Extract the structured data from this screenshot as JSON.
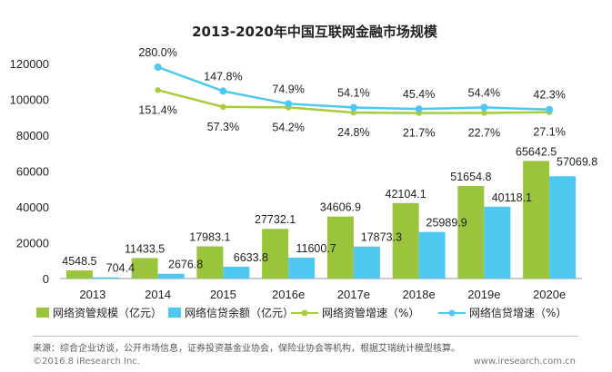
{
  "chart_data": {
    "type": "bar+line",
    "title": "2013-2020年中国互联网金融市场规模",
    "categories": [
      "2013",
      "2014",
      "2015",
      "2016e",
      "2017e",
      "2018e",
      "2019e",
      "2020e"
    ],
    "y_ticks": [
      "0",
      "20000",
      "40000",
      "60000",
      "80000",
      "100000",
      "120000"
    ],
    "ylim": [
      0,
      120000
    ],
    "grid": false,
    "legend_position": "bottom",
    "bar_series": [
      {
        "name": "网络资管规模（亿元）",
        "color": "#9ac43b",
        "values": [
          4548.5,
          11433.5,
          17983.1,
          27732.1,
          34606.9,
          42104.1,
          51654.8,
          65642.5
        ],
        "labels": [
          "4548.5",
          "11433.5",
          "17983.1",
          "27732.1",
          "34606.9",
          "42104.1",
          "51654.8",
          "65642.5"
        ]
      },
      {
        "name": "网络信贷余额（亿元）",
        "color": "#4ec8f0",
        "values": [
          704.4,
          2676.8,
          6633.8,
          11600.7,
          17873.3,
          25989.9,
          40118.1,
          57069.8
        ],
        "labels": [
          "704.4",
          "2676.8",
          "6633.8",
          "11600.7",
          "17873.3",
          "25989.9",
          "40118.1",
          "57069.8"
        ]
      }
    ],
    "line_series": [
      {
        "name": "网络资管增速（%）",
        "color": "#a9cc3e",
        "values": [
          151.4,
          57.3,
          54.2,
          24.8,
          21.7,
          22.7,
          27.1
        ],
        "labels": [
          "151.4%",
          "57.3%",
          "54.2%",
          "24.8%",
          "21.7%",
          "22.7%",
          "27.1%"
        ]
      },
      {
        "name": "网络信贷增速（%）",
        "color": "#4ec8f0",
        "values": [
          280.0,
          147.8,
          74.9,
          54.1,
          45.4,
          54.4,
          42.3
        ],
        "labels": [
          "280.0%",
          "147.8%",
          "74.9%",
          "54.1%",
          "45.4%",
          "54.4%",
          "42.3%"
        ]
      }
    ]
  },
  "footer": {
    "source": "来源：综合企业访谈，公开市场信息，证券投资基金业协会，保险业协会等机构，根据艾瑞统计模型核算。",
    "copyright": "©2016.8 iResearch Inc.",
    "website": "www.iresearch.com.cn"
  }
}
